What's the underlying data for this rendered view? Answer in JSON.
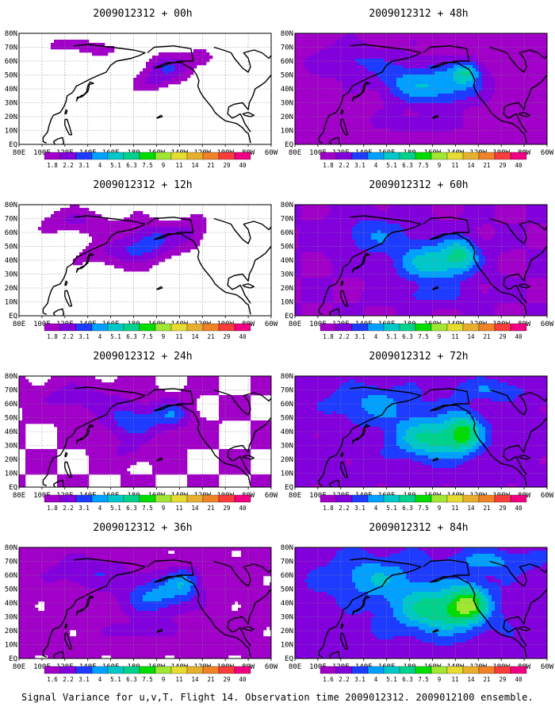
{
  "footer": "Signal Variance for u,v,T. Flight 14. Observation time 2009012312. 2009012100 ensemble.",
  "colors": {
    "palette": [
      "#a000c8",
      "#8200dc",
      "#1e3cff",
      "#00a0ff",
      "#00c8c8",
      "#00d28c",
      "#00dc00",
      "#a0e632",
      "#e6dc32",
      "#e6af2d",
      "#f08228",
      "#fa3c3c",
      "#f00082"
    ],
    "coast": "#000000",
    "grid": "#888888",
    "contour": "#f00082"
  },
  "chart_data": [
    {
      "type": "heatmap",
      "title": "2009012312 + 00h",
      "xticks": [
        "80E",
        "100E",
        "120E",
        "140E",
        "160E",
        "180",
        "160W",
        "140W",
        "120W",
        "100W",
        "80W",
        "60W"
      ],
      "yticks": [
        "EQ",
        "10N",
        "20N",
        "30N",
        "40N",
        "50N",
        "60N",
        "70N",
        "80N"
      ],
      "colorbar": {
        "levels": [
          "1.8",
          "2.2",
          "3.1",
          "4",
          "5.1",
          "6.3",
          "7.5",
          "9",
          "11",
          "14",
          "21",
          "29",
          "40"
        ]
      },
      "field": {
        "base": 0.2,
        "blobs": [
          {
            "lon": 210,
            "lat": 55,
            "sx": 20,
            "sy": 10,
            "amp": 2.6
          },
          {
            "lon": 195,
            "lat": 45,
            "sx": 18,
            "sy": 7,
            "amp": 1.4
          },
          {
            "lon": 150,
            "lat": 70,
            "sx": 25,
            "sy": 8,
            "amp": 1.2
          },
          {
            "lon": 110,
            "lat": 72,
            "sx": 15,
            "sy": 6,
            "amp": 1.0
          },
          {
            "lon": 240,
            "lat": 62,
            "sx": 14,
            "sy": 8,
            "amp": 1.2
          }
        ]
      }
    },
    {
      "type": "heatmap",
      "title": "2009012312 + 48h",
      "xticks": [
        "80E",
        "100E",
        "120E",
        "140E",
        "160E",
        "180",
        "160W",
        "140W",
        "120W",
        "100W",
        "80W",
        "60W"
      ],
      "yticks": [
        "EQ",
        "10N",
        "20N",
        "30N",
        "40N",
        "50N",
        "60N",
        "70N",
        "80N"
      ],
      "colorbar": {
        "levels": [
          "1.8",
          "2.2",
          "3.1",
          "4",
          "5.1",
          "6.3",
          "7.5",
          "9",
          "11",
          "14",
          "21",
          "29",
          "40"
        ]
      },
      "field": {
        "base": 1.6,
        "blobs": [
          {
            "lon": 210,
            "lat": 42,
            "sx": 30,
            "sy": 14,
            "amp": 3.0
          },
          {
            "lon": 230,
            "lat": 52,
            "sx": 12,
            "sy": 8,
            "amp": 3.4
          },
          {
            "lon": 175,
            "lat": 45,
            "sx": 25,
            "sy": 15,
            "amp": 2.0
          },
          {
            "lon": 130,
            "lat": 60,
            "sx": 30,
            "sy": 12,
            "amp": 1.6
          },
          {
            "lon": 190,
            "lat": 15,
            "sx": 35,
            "sy": 6,
            "amp": 1.2
          }
        ]
      }
    },
    {
      "type": "heatmap",
      "title": "2009012312 + 12h",
      "xticks": [
        "80E",
        "100E",
        "120E",
        "140E",
        "160E",
        "180",
        "160W",
        "140W",
        "120W",
        "100W",
        "80W",
        "60W"
      ],
      "yticks": [
        "EQ",
        "10N",
        "20N",
        "30N",
        "40N",
        "50N",
        "60N",
        "70N",
        "80N"
      ],
      "colorbar": {
        "levels": [
          "1.8",
          "2.2",
          "3.1",
          "4",
          "5.1",
          "6.3",
          "7.5",
          "9",
          "11",
          "14",
          "21",
          "29",
          "40"
        ]
      },
      "field": {
        "base": 0.5,
        "blobs": [
          {
            "lon": 195,
            "lat": 55,
            "sx": 25,
            "sy": 12,
            "amp": 2.6
          },
          {
            "lon": 170,
            "lat": 45,
            "sx": 30,
            "sy": 10,
            "amp": 1.8
          },
          {
            "lon": 130,
            "lat": 68,
            "sx": 30,
            "sy": 8,
            "amp": 1.6
          },
          {
            "lon": 230,
            "lat": 60,
            "sx": 15,
            "sy": 10,
            "amp": 1.4
          }
        ]
      }
    },
    {
      "type": "heatmap",
      "title": "2009012312 + 60h",
      "xticks": [
        "80E",
        "100E",
        "120E",
        "140E",
        "160E",
        "180",
        "160W",
        "140W",
        "120W",
        "100W",
        "80W",
        "60W"
      ],
      "yticks": [
        "EQ",
        "10N",
        "20N",
        "30N",
        "40N",
        "50N",
        "60N",
        "70N",
        "80N"
      ],
      "colorbar": {
        "levels": [
          "1.8",
          "2.2",
          "3.1",
          "4",
          "5.1",
          "6.3",
          "7.5",
          "9",
          "11",
          "14",
          "21",
          "29",
          "40"
        ]
      },
      "field": {
        "base": 2.0,
        "blobs": [
          {
            "lon": 200,
            "lat": 38,
            "sx": 30,
            "sy": 14,
            "amp": 3.6
          },
          {
            "lon": 225,
            "lat": 45,
            "sx": 15,
            "sy": 12,
            "amp": 3.0
          },
          {
            "lon": 150,
            "lat": 58,
            "sx": 35,
            "sy": 14,
            "amp": 1.8
          },
          {
            "lon": 200,
            "lat": 15,
            "sx": 35,
            "sy": 7,
            "amp": 1.4
          }
        ]
      }
    },
    {
      "type": "heatmap",
      "title": "2009012312 + 24h",
      "xticks": [
        "80E",
        "100E",
        "120E",
        "140E",
        "160E",
        "180",
        "160W",
        "140W",
        "120W",
        "100W",
        "80W",
        "60W"
      ],
      "yticks": [
        "EQ",
        "10N",
        "20N",
        "30N",
        "40N",
        "50N",
        "60N",
        "70N",
        "80N"
      ],
      "colorbar": {
        "levels": [
          "1.8",
          "2.2",
          "3.1",
          "4",
          "5.1",
          "6.3",
          "7.5",
          "9",
          "11",
          "14",
          "21",
          "29",
          "40"
        ]
      },
      "field": {
        "base": 1.0,
        "blobs": [
          {
            "lon": 180,
            "lat": 48,
            "sx": 30,
            "sy": 14,
            "amp": 2.6
          },
          {
            "lon": 215,
            "lat": 52,
            "sx": 15,
            "sy": 10,
            "amp": 2.2
          },
          {
            "lon": 130,
            "lat": 65,
            "sx": 35,
            "sy": 10,
            "amp": 1.6
          },
          {
            "lon": 175,
            "lat": 25,
            "sx": 20,
            "sy": 8,
            "amp": 1.0
          }
        ]
      }
    },
    {
      "type": "heatmap",
      "title": "2009012312 + 72h",
      "xticks": [
        "80E",
        "100E",
        "120E",
        "140E",
        "160E",
        "180",
        "160W",
        "140W",
        "120W",
        "100W",
        "80W",
        "60W"
      ],
      "yticks": [
        "EQ",
        "10N",
        "20N",
        "30N",
        "40N",
        "50N",
        "60N",
        "70N",
        "80N"
      ],
      "colorbar": {
        "levels": [
          "1.8",
          "2.2",
          "3.1",
          "4",
          "5.1",
          "6.3",
          "7.5",
          "9",
          "11",
          "14",
          "21",
          "29",
          "40"
        ]
      },
      "field": {
        "base": 2.3,
        "blobs": [
          {
            "lon": 200,
            "lat": 35,
            "sx": 35,
            "sy": 15,
            "amp": 4.0
          },
          {
            "lon": 228,
            "lat": 40,
            "sx": 15,
            "sy": 14,
            "amp": 3.4
          },
          {
            "lon": 150,
            "lat": 60,
            "sx": 40,
            "sy": 14,
            "amp": 2.0
          },
          {
            "lon": 250,
            "lat": 70,
            "sx": 35,
            "sy": 8,
            "amp": 1.6
          }
        ]
      }
    },
    {
      "type": "heatmap",
      "title": "2009012312 + 36h",
      "xticks": [
        "80E",
        "100E",
        "120E",
        "140E",
        "160E",
        "180",
        "160W",
        "140W",
        "120W",
        "100W",
        "80W",
        "60W"
      ],
      "yticks": [
        "EQ",
        "10N",
        "20N",
        "30N",
        "40N",
        "50N",
        "60N",
        "70N",
        "80N"
      ],
      "colorbar": {
        "levels": [
          "1.6",
          "2.2",
          "3.1",
          "4",
          "5.1",
          "6.3",
          "7.5",
          "9",
          "11",
          "14",
          "21",
          "29",
          "40"
        ]
      },
      "field": {
        "base": 1.3,
        "blobs": [
          {
            "lon": 200,
            "lat": 45,
            "sx": 30,
            "sy": 14,
            "amp": 3.0
          },
          {
            "lon": 225,
            "lat": 55,
            "sx": 14,
            "sy": 10,
            "amp": 2.6
          },
          {
            "lon": 140,
            "lat": 62,
            "sx": 35,
            "sy": 12,
            "amp": 1.6
          },
          {
            "lon": 185,
            "lat": 20,
            "sx": 30,
            "sy": 7,
            "amp": 1.2
          }
        ]
      }
    },
    {
      "type": "heatmap",
      "title": "2009012312 + 84h",
      "xticks": [
        "80E",
        "100E",
        "120E",
        "140E",
        "160E",
        "180",
        "160W",
        "140W",
        "120W",
        "100W",
        "80W",
        "60W"
      ],
      "yticks": [
        "EQ",
        "10N",
        "20N",
        "30N",
        "40N",
        "50N",
        "60N",
        "70N",
        "80N"
      ],
      "colorbar": {
        "levels": [
          "1.6",
          "2.2",
          "3.1",
          "4",
          "5.1",
          "6.3",
          "7.5",
          "9",
          "11",
          "14",
          "21",
          "29",
          "40"
        ]
      },
      "field": {
        "base": 2.6,
        "blobs": [
          {
            "lon": 205,
            "lat": 35,
            "sx": 38,
            "sy": 16,
            "amp": 4.2
          },
          {
            "lon": 232,
            "lat": 40,
            "sx": 16,
            "sy": 14,
            "amp": 3.6
          },
          {
            "lon": 150,
            "lat": 58,
            "sx": 40,
            "sy": 15,
            "amp": 2.2
          },
          {
            "lon": 250,
            "lat": 70,
            "sx": 35,
            "sy": 8,
            "amp": 1.8
          }
        ]
      }
    }
  ]
}
